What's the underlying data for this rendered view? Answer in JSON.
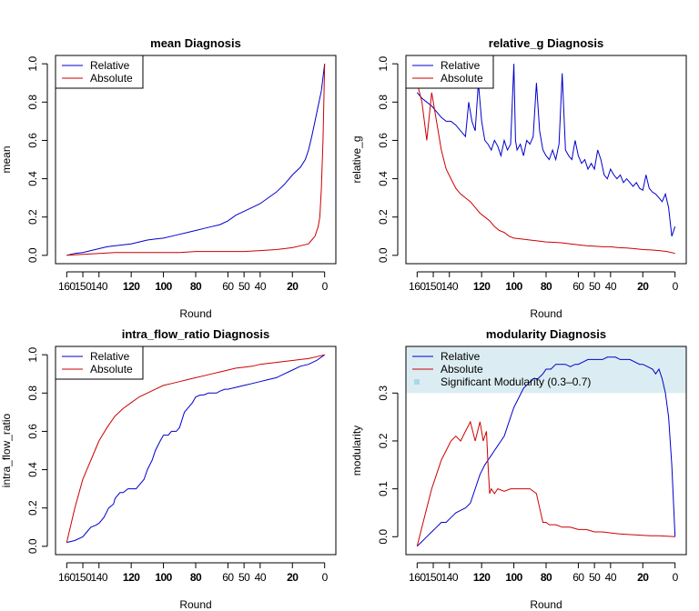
{
  "x_ticks": [
    160,
    150,
    140,
    120,
    100,
    80,
    60,
    50,
    40,
    20,
    0
  ],
  "x_ticks_bold": [
    120,
    100,
    80,
    20
  ],
  "colors": {
    "relative": "#0000cd",
    "absolute": "#cd0000",
    "band": "#dbedf2",
    "band_key": "#add8e6"
  },
  "chart_data": [
    {
      "type": "line",
      "title": "mean Diagnosis",
      "xlabel": "Round",
      "ylabel": "mean",
      "xlim": [
        160,
        0
      ],
      "ylim": [
        0,
        1
      ],
      "y_ticks": [
        "0.0",
        "0.2",
        "0.4",
        "0.6",
        "0.8",
        "1.0"
      ],
      "y_tick_values": [
        0,
        0.2,
        0.4,
        0.6,
        0.8,
        1.0
      ],
      "legend": [
        "Relative",
        "Absolute"
      ],
      "legend_position": "top-left",
      "series": [
        {
          "name": "Relative",
          "x": [
            160,
            155,
            150,
            145,
            140,
            135,
            130,
            125,
            120,
            115,
            110,
            105,
            100,
            95,
            90,
            85,
            80,
            75,
            70,
            65,
            60,
            55,
            50,
            45,
            40,
            35,
            30,
            25,
            20,
            15,
            12,
            10,
            8,
            6,
            4,
            2,
            0
          ],
          "y": [
            0.0,
            0.01,
            0.015,
            0.025,
            0.035,
            0.045,
            0.05,
            0.055,
            0.06,
            0.07,
            0.08,
            0.085,
            0.09,
            0.1,
            0.11,
            0.12,
            0.13,
            0.14,
            0.15,
            0.16,
            0.18,
            0.21,
            0.23,
            0.25,
            0.27,
            0.3,
            0.33,
            0.37,
            0.42,
            0.46,
            0.5,
            0.55,
            0.62,
            0.7,
            0.78,
            0.86,
            1.0
          ]
        },
        {
          "name": "Absolute",
          "x": [
            160,
            150,
            140,
            130,
            120,
            110,
            100,
            90,
            80,
            70,
            60,
            50,
            40,
            30,
            20,
            15,
            10,
            8,
            6,
            4,
            3,
            2,
            1,
            0
          ],
          "y": [
            0.0,
            0.005,
            0.01,
            0.015,
            0.015,
            0.015,
            0.015,
            0.015,
            0.02,
            0.02,
            0.02,
            0.02,
            0.025,
            0.03,
            0.04,
            0.05,
            0.06,
            0.08,
            0.1,
            0.15,
            0.2,
            0.35,
            0.6,
            1.0
          ]
        }
      ]
    },
    {
      "type": "line",
      "title": "relative_g Diagnosis",
      "xlabel": "Round",
      "ylabel": "relative_g",
      "xlim": [
        160,
        0
      ],
      "ylim": [
        0,
        1
      ],
      "y_ticks": [
        "0.0",
        "0.2",
        "0.4",
        "0.6",
        "0.8",
        "1.0"
      ],
      "y_tick_values": [
        0,
        0.2,
        0.4,
        0.6,
        0.8,
        1.0
      ],
      "legend": [
        "Relative",
        "Absolute"
      ],
      "legend_position": "top-left",
      "series": [
        {
          "name": "Relative",
          "x": [
            160,
            157,
            154,
            151,
            148,
            145,
            142,
            139,
            136,
            133,
            130,
            128,
            126,
            124,
            122,
            120,
            118,
            116,
            114,
            112,
            110,
            108,
            106,
            104,
            102,
            100,
            99,
            98,
            96,
            94,
            92,
            90,
            88,
            86,
            84,
            82,
            80,
            78,
            76,
            74,
            72,
            70,
            68,
            66,
            64,
            62,
            60,
            58,
            56,
            54,
            52,
            50,
            48,
            46,
            44,
            42,
            40,
            38,
            36,
            34,
            32,
            30,
            28,
            26,
            24,
            22,
            20,
            18,
            16,
            14,
            12,
            10,
            8,
            6,
            4,
            2,
            0
          ],
          "y": [
            0.85,
            0.82,
            0.8,
            0.78,
            0.75,
            0.72,
            0.7,
            0.7,
            0.68,
            0.65,
            0.62,
            0.8,
            0.7,
            0.65,
            0.9,
            0.7,
            0.6,
            0.58,
            0.55,
            0.6,
            0.57,
            0.52,
            0.6,
            0.55,
            0.58,
            1.0,
            0.6,
            0.55,
            0.58,
            0.52,
            0.6,
            0.58,
            0.62,
            0.9,
            0.65,
            0.55,
            0.52,
            0.5,
            0.55,
            0.5,
            0.58,
            0.95,
            0.55,
            0.52,
            0.5,
            0.6,
            0.52,
            0.48,
            0.5,
            0.45,
            0.48,
            0.45,
            0.55,
            0.5,
            0.42,
            0.4,
            0.45,
            0.42,
            0.4,
            0.42,
            0.38,
            0.4,
            0.38,
            0.36,
            0.38,
            0.35,
            0.34,
            0.42,
            0.35,
            0.33,
            0.32,
            0.3,
            0.28,
            0.32,
            0.25,
            0.1,
            0.15
          ]
        },
        {
          "name": "Absolute",
          "x": [
            160,
            157,
            154,
            151,
            148,
            145,
            142,
            139,
            136,
            133,
            130,
            127,
            124,
            121,
            118,
            115,
            112,
            109,
            106,
            103,
            100,
            95,
            90,
            85,
            80,
            75,
            70,
            65,
            60,
            55,
            50,
            45,
            40,
            35,
            30,
            25,
            20,
            15,
            10,
            5,
            0
          ],
          "y": [
            0.9,
            0.8,
            0.6,
            0.85,
            0.7,
            0.55,
            0.45,
            0.4,
            0.35,
            0.32,
            0.3,
            0.28,
            0.25,
            0.22,
            0.2,
            0.18,
            0.15,
            0.13,
            0.12,
            0.1,
            0.09,
            0.085,
            0.08,
            0.075,
            0.07,
            0.068,
            0.065,
            0.06,
            0.055,
            0.05,
            0.048,
            0.045,
            0.045,
            0.04,
            0.038,
            0.035,
            0.03,
            0.028,
            0.025,
            0.02,
            0.01
          ]
        }
      ]
    },
    {
      "type": "line",
      "title": "intra_flow_ratio Diagnosis",
      "xlabel": "Round",
      "ylabel": "intra_flow_ratio",
      "xlim": [
        160,
        0
      ],
      "ylim": [
        0,
        1
      ],
      "y_ticks": [
        "0.0",
        "0.2",
        "0.4",
        "0.6",
        "0.8",
        "1.0"
      ],
      "y_tick_values": [
        0,
        0.2,
        0.4,
        0.6,
        0.8,
        1.0
      ],
      "legend": [
        "Relative",
        "Absolute"
      ],
      "legend_position": "top-left",
      "series": [
        {
          "name": "Relative",
          "x": [
            160,
            155,
            150,
            147,
            145,
            142,
            140,
            137,
            134,
            131,
            130,
            127,
            125,
            122,
            120,
            117,
            115,
            112,
            110,
            107,
            105,
            102,
            100,
            97,
            95,
            92,
            90,
            87,
            85,
            82,
            80,
            77,
            75,
            72,
            70,
            67,
            65,
            62,
            60,
            55,
            50,
            45,
            40,
            35,
            30,
            25,
            20,
            15,
            10,
            5,
            0
          ],
          "y": [
            0.02,
            0.03,
            0.05,
            0.08,
            0.1,
            0.11,
            0.12,
            0.15,
            0.2,
            0.22,
            0.25,
            0.28,
            0.28,
            0.3,
            0.3,
            0.3,
            0.32,
            0.35,
            0.4,
            0.45,
            0.5,
            0.55,
            0.58,
            0.58,
            0.6,
            0.6,
            0.62,
            0.7,
            0.72,
            0.75,
            0.78,
            0.79,
            0.79,
            0.8,
            0.8,
            0.8,
            0.81,
            0.82,
            0.82,
            0.83,
            0.84,
            0.85,
            0.86,
            0.87,
            0.88,
            0.9,
            0.92,
            0.94,
            0.95,
            0.97,
            1.0
          ]
        },
        {
          "name": "Absolute",
          "x": [
            160,
            155,
            150,
            145,
            140,
            135,
            130,
            125,
            120,
            115,
            110,
            105,
            100,
            95,
            90,
            85,
            80,
            75,
            70,
            65,
            60,
            55,
            50,
            45,
            40,
            35,
            30,
            25,
            20,
            15,
            10,
            5,
            0
          ],
          "y": [
            0.02,
            0.2,
            0.35,
            0.45,
            0.55,
            0.62,
            0.68,
            0.72,
            0.75,
            0.78,
            0.8,
            0.82,
            0.84,
            0.85,
            0.86,
            0.87,
            0.88,
            0.89,
            0.9,
            0.91,
            0.92,
            0.93,
            0.935,
            0.94,
            0.95,
            0.955,
            0.96,
            0.965,
            0.97,
            0.975,
            0.98,
            0.99,
            1.0
          ]
        }
      ]
    },
    {
      "type": "line",
      "title": "modularity Diagnosis",
      "xlabel": "Round",
      "ylabel": "modularity",
      "xlim": [
        160,
        0
      ],
      "ylim": [
        -0.02,
        0.38
      ],
      "y_ticks": [
        "0.0",
        "0.1",
        "0.2",
        "0.3"
      ],
      "y_tick_values": [
        0,
        0.1,
        0.2,
        0.3
      ],
      "band": {
        "label": "Significant Modularity (0.3–0.7)",
        "from": 0.3,
        "to": 0.7
      },
      "legend": [
        "Relative",
        "Absolute",
        "Significant Modularity (0.3–0.7)"
      ],
      "legend_position": "top-left",
      "series": [
        {
          "name": "Relative",
          "x": [
            160,
            157,
            154,
            151,
            148,
            145,
            142,
            139,
            136,
            133,
            130,
            127,
            124,
            121,
            118,
            116,
            114,
            112,
            110,
            108,
            106,
            104,
            102,
            100,
            97,
            94,
            91,
            88,
            85,
            82,
            80,
            77,
            74,
            71,
            68,
            65,
            62,
            60,
            57,
            54,
            51,
            48,
            45,
            42,
            40,
            37,
            34,
            31,
            28,
            25,
            22,
            20,
            17,
            14,
            12,
            10,
            8,
            6,
            4,
            2,
            0
          ],
          "y": [
            -0.02,
            -0.01,
            0.0,
            0.01,
            0.02,
            0.03,
            0.03,
            0.04,
            0.05,
            0.055,
            0.06,
            0.07,
            0.1,
            0.13,
            0.15,
            0.16,
            0.17,
            0.18,
            0.19,
            0.2,
            0.21,
            0.23,
            0.25,
            0.27,
            0.29,
            0.31,
            0.32,
            0.33,
            0.33,
            0.34,
            0.35,
            0.35,
            0.36,
            0.36,
            0.36,
            0.355,
            0.36,
            0.36,
            0.365,
            0.37,
            0.37,
            0.37,
            0.37,
            0.375,
            0.375,
            0.375,
            0.37,
            0.37,
            0.37,
            0.365,
            0.36,
            0.36,
            0.355,
            0.35,
            0.34,
            0.35,
            0.33,
            0.3,
            0.25,
            0.15,
            0.0
          ]
        },
        {
          "name": "Absolute",
          "x": [
            160,
            157,
            154,
            151,
            148,
            145,
            142,
            139,
            136,
            133,
            130,
            127,
            124,
            121,
            119,
            117,
            116,
            115,
            114,
            112,
            110,
            106,
            102,
            98,
            94,
            90,
            86,
            84,
            82,
            80,
            78,
            74,
            70,
            65,
            60,
            55,
            50,
            45,
            40,
            35,
            30,
            25,
            20,
            15,
            10,
            5,
            0
          ],
          "y": [
            -0.02,
            0.02,
            0.06,
            0.1,
            0.13,
            0.16,
            0.18,
            0.2,
            0.21,
            0.2,
            0.22,
            0.24,
            0.2,
            0.24,
            0.2,
            0.22,
            0.15,
            0.09,
            0.1,
            0.09,
            0.1,
            0.095,
            0.1,
            0.1,
            0.1,
            0.1,
            0.09,
            0.06,
            0.03,
            0.03,
            0.025,
            0.025,
            0.02,
            0.02,
            0.015,
            0.015,
            0.01,
            0.01,
            0.008,
            0.006,
            0.005,
            0.004,
            0.003,
            0.002,
            0.002,
            0.001,
            0.0
          ]
        }
      ]
    }
  ]
}
